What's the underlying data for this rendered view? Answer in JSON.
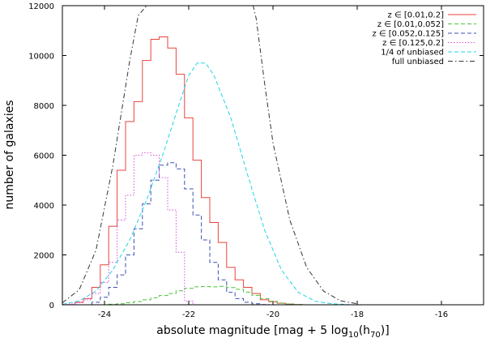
{
  "chart_data": {
    "type": "line",
    "xlabel_parts": [
      "absolute magnitude [mag + 5 log",
      "10",
      "(h",
      "70",
      ")]"
    ],
    "ylabel": "number of galaxies",
    "xlim": [
      -25,
      -15
    ],
    "ylim": [
      0,
      12000
    ],
    "xticks": [
      -24,
      -22,
      -20,
      -18,
      -16
    ],
    "yticks": [
      0,
      2000,
      4000,
      6000,
      8000,
      10000,
      12000
    ],
    "grid": false,
    "legend_position": "top-right",
    "series": [
      {
        "name": "z ∈ [0.01,0.2]",
        "color": "#e8453c",
        "style": "solid",
        "render": "step",
        "bin_width": 0.2,
        "x": [
          -24.6,
          -24.4,
          -24.2,
          -24.0,
          -23.8,
          -23.6,
          -23.4,
          -23.2,
          -23.0,
          -22.8,
          -22.6,
          -22.4,
          -22.2,
          -22.0,
          -21.8,
          -21.6,
          -21.4,
          -21.2,
          -21.0,
          -20.8,
          -20.6,
          -20.4,
          -20.2,
          -20.0,
          -19.8,
          -19.6,
          -19.4
        ],
        "y": [
          100,
          250,
          700,
          1600,
          3150,
          5400,
          7350,
          8150,
          9800,
          10650,
          10750,
          10300,
          9250,
          7500,
          5800,
          4300,
          3300,
          2500,
          1500,
          1000,
          700,
          450,
          200,
          120,
          60,
          30,
          10
        ]
      },
      {
        "name": "z ∈ [0.01,0.052]",
        "color": "#4cc23a",
        "style": "dashed",
        "render": "step",
        "bin_width": 0.2,
        "x": [
          -23.8,
          -23.6,
          -23.4,
          -23.2,
          -23.0,
          -22.8,
          -22.6,
          -22.4,
          -22.2,
          -22.0,
          -21.8,
          -21.6,
          -21.4,
          -21.2,
          -21.0,
          -20.8,
          -20.6,
          -20.4,
          -20.2,
          -20.0,
          -19.8,
          -19.6,
          -19.4
        ],
        "y": [
          20,
          40,
          80,
          130,
          200,
          280,
          370,
          450,
          560,
          660,
          720,
          730,
          720,
          740,
          690,
          620,
          510,
          380,
          250,
          140,
          70,
          30,
          10
        ]
      },
      {
        "name": "z ∈ [0.052,0.125]",
        "color": "#3b4fb5",
        "style": "dashed",
        "render": "step",
        "bin_width": 0.2,
        "x": [
          -24.2,
          -24.0,
          -23.8,
          -23.6,
          -23.4,
          -23.2,
          -23.0,
          -22.8,
          -22.6,
          -22.4,
          -22.2,
          -22.0,
          -21.8,
          -21.6,
          -21.4,
          -21.2,
          -21.0,
          -20.8,
          -20.6,
          -20.4,
          -20.2
        ],
        "y": [
          100,
          300,
          700,
          1200,
          2000,
          3050,
          4050,
          5000,
          5600,
          5700,
          5450,
          4650,
          3600,
          2600,
          1700,
          1000,
          500,
          250,
          100,
          40,
          10
        ]
      },
      {
        "name": "z ∈ [0.125,0.2]",
        "color": "#d64fd6",
        "style": "dotted",
        "render": "step",
        "bin_width": 0.2,
        "x": [
          -24.8,
          -24.6,
          -24.4,
          -24.2,
          -24.0,
          -23.8,
          -23.6,
          -23.4,
          -23.2,
          -23.0,
          -22.8,
          -22.6,
          -22.4,
          -22.2,
          -22.0
        ],
        "y": [
          30,
          80,
          200,
          450,
          900,
          1700,
          3400,
          4400,
          6000,
          6100,
          6000,
          5100,
          3800,
          2100,
          150
        ]
      },
      {
        "name": "1/4 of unbiased",
        "color": "#1fd3e6",
        "style": "dashed",
        "render": "line",
        "x": [
          -25.0,
          -24.6,
          -24.2,
          -23.8,
          -23.4,
          -23.0,
          -22.6,
          -22.2,
          -22.0,
          -21.8,
          -21.6,
          -21.4,
          -21.0,
          -20.6,
          -20.2,
          -19.8,
          -19.4,
          -19.0,
          -18.6,
          -18.2
        ],
        "y": [
          20,
          150,
          550,
          1400,
          2600,
          4200,
          6100,
          8200,
          9200,
          9700,
          9700,
          9200,
          7500,
          5200,
          3000,
          1400,
          500,
          140,
          40,
          10
        ]
      },
      {
        "name": "full unbiased",
        "color": "#333333",
        "style": "dashdot",
        "render": "line",
        "x": [
          -25.0,
          -24.6,
          -24.2,
          -23.8,
          -23.4,
          -23.2,
          -23.0,
          -22.9,
          -22.8,
          -20.6,
          -20.5,
          -20.4,
          -20.2,
          -20.0,
          -19.6,
          -19.2,
          -18.8,
          -18.4,
          -18.0
        ],
        "y": [
          80,
          600,
          2200,
          5600,
          9800,
          11600,
          12000,
          12500,
          13000,
          13000,
          12200,
          11500,
          8900,
          6500,
          3400,
          1500,
          550,
          160,
          40
        ]
      }
    ]
  }
}
